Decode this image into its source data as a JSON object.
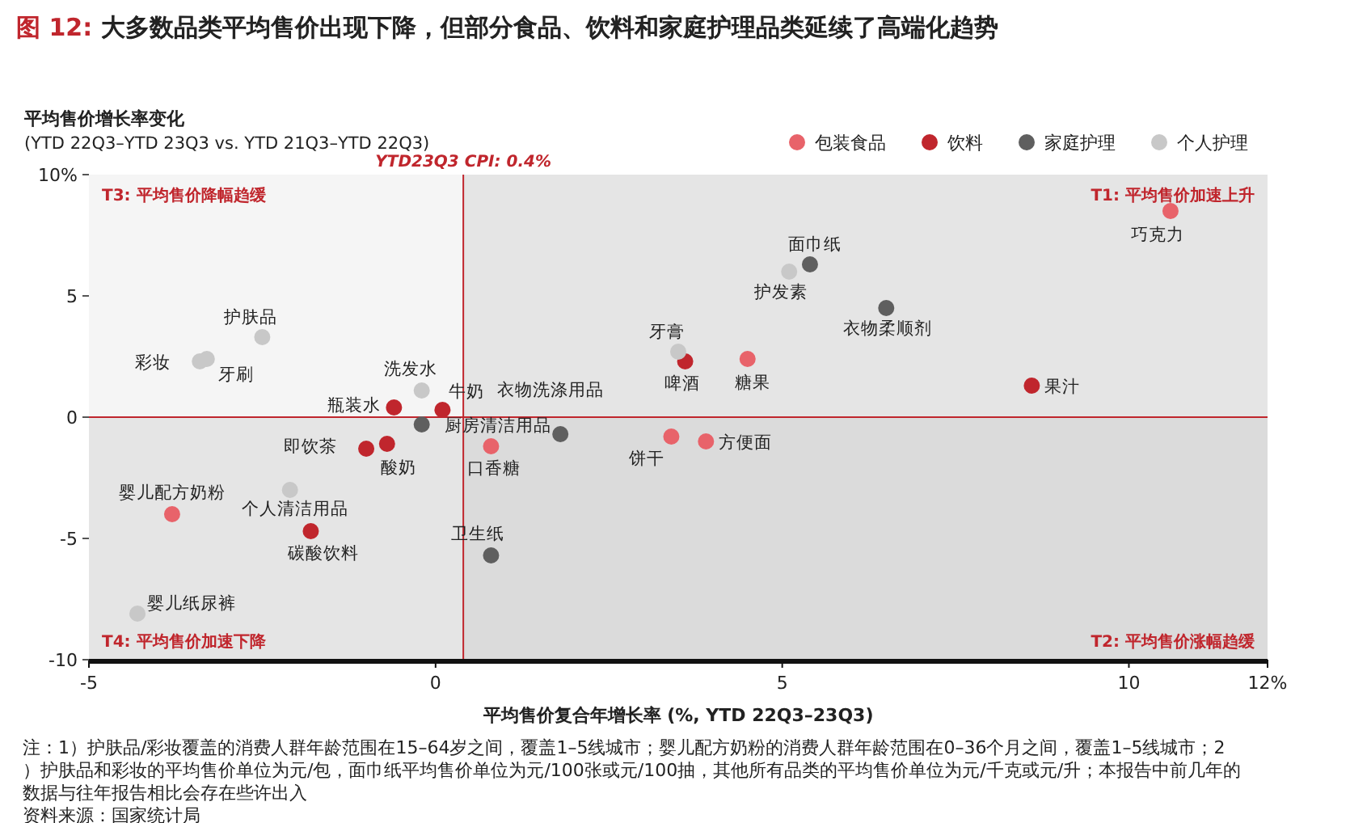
{
  "chart_data": {
    "type": "scatter",
    "title": "图 12: 大多数品类平均售价出现下降，但部分食品、饮料和家庭护理品类延续了高端化趋势",
    "ylabel": "平均售价增长率变化",
    "subtitle": "(YTD 22Q3–YTD 23Q3 vs. YTD 21Q3–YTD 22Q3)",
    "xlabel": "平均售价复合年增长率 (%, YTD 22Q3–23Q3)",
    "xlim": [
      -5,
      12
    ],
    "ylim": [
      -10,
      10
    ],
    "xticks": [
      -5,
      0,
      5,
      10,
      {
        "value": 12,
        "label": "12%"
      }
    ],
    "yticks": [
      {
        "value": 10,
        "label": "10%"
      },
      5,
      0,
      -5,
      -10
    ],
    "grid": false,
    "legend": "top right",
    "marker": "circle",
    "ref_lines": [
      {
        "axis": "x",
        "value": 0.4,
        "label": "YTD23Q3 CPI:  0.4%",
        "color": "#c0262d"
      },
      {
        "axis": "y",
        "value": 0,
        "label": null,
        "color": "#c0262d"
      }
    ],
    "bands": [
      {
        "axis": "x",
        "from": 0.4,
        "to": 12,
        "label": null,
        "color": "#c8c8c8"
      },
      {
        "axis": "y",
        "from": -10,
        "to": 0,
        "label": null,
        "color": "#c8c8c8"
      }
    ],
    "series": [
      {
        "name": "包装食品",
        "color": "#e8636a",
        "x": [
          10.6,
          4.5,
          3.4,
          3.9,
          0.8,
          -3.8
        ],
        "values": [
          8.5,
          2.4,
          -0.8,
          -1.0,
          -1.2,
          -4.0
        ]
      },
      {
        "name": "饮料",
        "color": "#c0262d",
        "x": [
          -0.6,
          0.1,
          -1.0,
          -0.7,
          -1.8,
          3.6,
          8.6
        ],
        "values": [
          0.4,
          0.3,
          -1.3,
          -1.1,
          -4.7,
          2.3,
          1.3
        ]
      },
      {
        "name": "家庭护理",
        "color": "#5f5f5f",
        "x": [
          -0.2,
          1.8,
          0.8,
          5.4,
          6.5
        ],
        "values": [
          -0.3,
          -0.7,
          -5.7,
          6.3,
          4.5
        ]
      },
      {
        "name": "个人护理",
        "color": "#c8c8c8",
        "x": [
          -2.5,
          -3.4,
          -3.3,
          -0.2,
          -2.1,
          -4.3,
          5.1,
          3.5
        ],
        "values": [
          3.3,
          2.3,
          2.4,
          1.1,
          -3.0,
          -8.1,
          6.0,
          2.7
        ]
      }
    ],
    "annotations": [
      "T3: 平均售价降幅趋缓",
      "T1: 平均售价加速上升",
      "T4: 平均售价加速下降",
      "T2: 平均售价涨幅趋缓",
      "注：1）护肤品/彩妆覆盖的消费人群年龄范围在15–64岁之间，覆盖1–5线城市；婴儿配方奶粉的消费人群年龄范围在0–36个月之间，覆盖1–5线城市；2）护肤品和彩妆的平均售价单位为元/包，面巾纸平均售价单位为元/100张或元/100抽，其他所有品类的平均售价单位为元/千克或元/升；本报告中前几年的数据与往年报告相比会存在些许出入",
      "资料来源：国家统计局",
      {
        "text": "巧克力",
        "x": 10.6,
        "y": 8.5
      },
      {
        "text": "糖果",
        "x": 4.5,
        "y": 2.4
      },
      {
        "text": "饼干",
        "x": 3.4,
        "y": -0.8
      },
      {
        "text": "方便面",
        "x": 3.9,
        "y": -1.0
      },
      {
        "text": "口香糖",
        "x": 0.8,
        "y": -1.2
      },
      {
        "text": "婴儿配方奶粉",
        "x": -3.8,
        "y": -4.0
      },
      {
        "text": "瓶装水",
        "x": -0.6,
        "y": 0.4
      },
      {
        "text": "牛奶",
        "x": 0.1,
        "y": 0.3
      },
      {
        "text": "即饮茶",
        "x": -1.0,
        "y": -1.3
      },
      {
        "text": "酸奶",
        "x": -0.7,
        "y": -1.1
      },
      {
        "text": "碳酸饮料",
        "x": -1.8,
        "y": -4.7
      },
      {
        "text": "啤酒",
        "x": 3.6,
        "y": 2.3
      },
      {
        "text": "果汁",
        "x": 8.6,
        "y": 1.3
      },
      {
        "text": "厨房清洁用品",
        "x": -0.2,
        "y": -0.3
      },
      {
        "text": "衣物洗涤用品",
        "x": 1.8,
        "y": -0.7
      },
      {
        "text": "卫生纸",
        "x": 0.8,
        "y": -5.7
      },
      {
        "text": "面巾纸",
        "x": 5.4,
        "y": 6.3
      },
      {
        "text": "衣物柔顺剂",
        "x": 6.5,
        "y": 4.5
      },
      {
        "text": "护肤品",
        "x": -2.5,
        "y": 3.3
      },
      {
        "text": "彩妆",
        "x": -3.4,
        "y": 2.3
      },
      {
        "text": "牙刷",
        "x": -3.3,
        "y": 2.4
      },
      {
        "text": "洗发水",
        "x": -0.2,
        "y": 1.1
      },
      {
        "text": "个人清洁用品",
        "x": -2.1,
        "y": -3.0
      },
      {
        "text": "婴儿纸尿裤",
        "x": -4.3,
        "y": -8.1
      },
      {
        "text": "护发素",
        "x": 5.1,
        "y": 6.0
      },
      {
        "text": "牙膏",
        "x": 3.5,
        "y": 2.7
      }
    ]
  }
}
